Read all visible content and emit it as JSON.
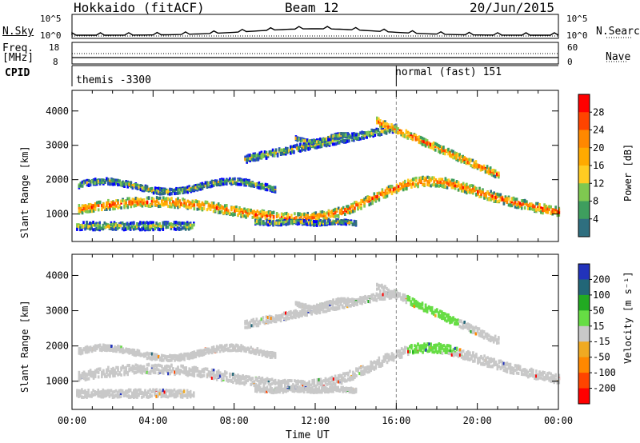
{
  "header": {
    "station": "Hokkaido (fitACF)",
    "beam": "Beam 12",
    "date": "20/Jun/2015"
  },
  "top_panel": {
    "left_label": "N.Sky",
    "right_label": "N.Search",
    "left_ticks": [
      "10^5",
      "10^0"
    ],
    "right_ticks": [
      "10^5",
      "10^0"
    ]
  },
  "freq_panel": {
    "left_label": "Freq.",
    "left_unit": "[MHz]",
    "right_label": "Nave",
    "left_ticks": [
      "18",
      "8"
    ],
    "right_ticks": [
      "60",
      "0"
    ]
  },
  "cpid_panel": {
    "label": "CPID",
    "modes": [
      "themis -3300",
      "normal (fast) 151"
    ]
  },
  "chart_data": [
    {
      "type": "heatmap",
      "title": "",
      "ylabel": "Slant Range [km]",
      "xlabel": "",
      "yticks": [
        "1000",
        "2000",
        "3000",
        "4000"
      ],
      "colorbar": {
        "label": "Power [dB]",
        "ticks": [
          "28",
          "24",
          "20",
          "16",
          "12",
          "8",
          "4"
        ],
        "colors": [
          "#ff0000",
          "#ff4400",
          "#ff8800",
          "#ffaa00",
          "#ffcc22",
          "#7fc850",
          "#3e9e5e",
          "#2f6f7f",
          "#2244cc",
          "#0000ff"
        ]
      }
    },
    {
      "type": "heatmap",
      "title": "",
      "ylabel": "Slant Range [km]",
      "xlabel": "Time UT",
      "yticks": [
        "1000",
        "2000",
        "3000",
        "4000"
      ],
      "xticks": [
        "00:00",
        "04:00",
        "08:00",
        "12:00",
        "16:00",
        "20:00",
        "00:00"
      ],
      "colorbar": {
        "label": "Velocity [m s⁻¹]",
        "ticks": [
          "200",
          "100",
          "50",
          "15",
          "-15",
          "-50",
          "-100",
          "-200"
        ],
        "colors": [
          "#2233bb",
          "#226677",
          "#22aa22",
          "#66dd44",
          "#c8c8c8",
          "#f0aa22",
          "#ff8800",
          "#ff4400",
          "#ff0000"
        ]
      }
    }
  ]
}
